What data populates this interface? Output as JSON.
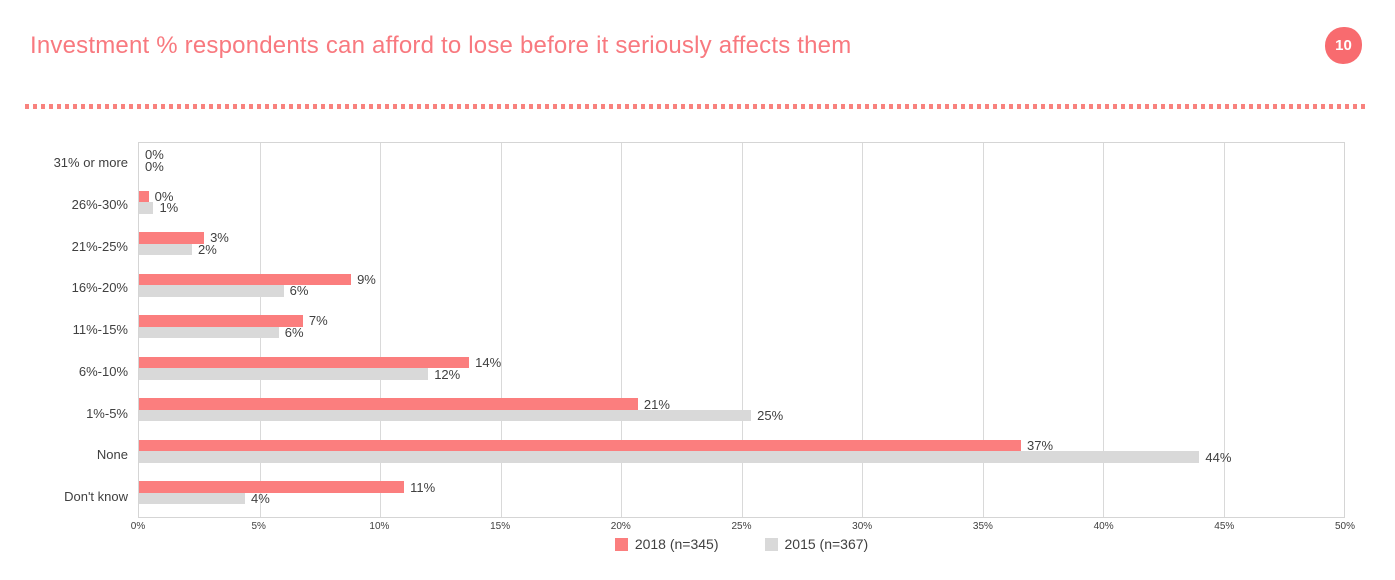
{
  "page": {
    "title": "Investment % respondents can afford to lose before it seriously affects them",
    "page_number": "10"
  },
  "colors": {
    "title": "#F8797F",
    "badge": "#F86B6F",
    "divider_dots": "#F8827E",
    "bar_2018": "#FB7E7E",
    "bar_2015": "#D9D9D9",
    "text": "#404040",
    "grid": "#D9D9D9"
  },
  "chart_data": {
    "type": "bar",
    "orientation": "horizontal",
    "title": "Investment % respondents can afford to lose before it seriously affects them",
    "categories": [
      "31% or more",
      "26%-30%",
      "21%-25%",
      "16%-20%",
      "11%-15%",
      "6%-10%",
      "1%-5%",
      "None",
      "Don't know"
    ],
    "series": [
      {
        "name": "2018 (n=345)",
        "color": "#FB7E7E",
        "values": [
          0,
          0,
          3,
          9,
          7,
          14,
          21,
          37,
          11
        ],
        "labels": [
          "0%",
          "0%",
          "3%",
          "9%",
          "7%",
          "14%",
          "21%",
          "37%",
          "11%"
        ],
        "bar_pct": [
          0,
          0.4,
          2.7,
          8.8,
          6.8,
          13.7,
          20.7,
          36.6,
          11
        ]
      },
      {
        "name": "2015 (n=367)",
        "color": "#D9D9D9",
        "values": [
          0,
          1,
          2,
          6,
          6,
          12,
          25,
          44,
          4
        ],
        "labels": [
          "0%",
          "1%",
          "2%",
          "6%",
          "6%",
          "12%",
          "25%",
          "44%",
          "4%"
        ],
        "bar_pct": [
          0,
          0.6,
          2.2,
          6.0,
          5.8,
          12.0,
          25.4,
          44.0,
          4.4
        ]
      }
    ],
    "xlim": [
      0,
      50
    ],
    "x_ticks": [
      "0%",
      "5%",
      "10%",
      "15%",
      "20%",
      "25%",
      "30%",
      "35%",
      "40%",
      "45%",
      "50%"
    ],
    "grid": true,
    "legend_position": "bottom"
  }
}
